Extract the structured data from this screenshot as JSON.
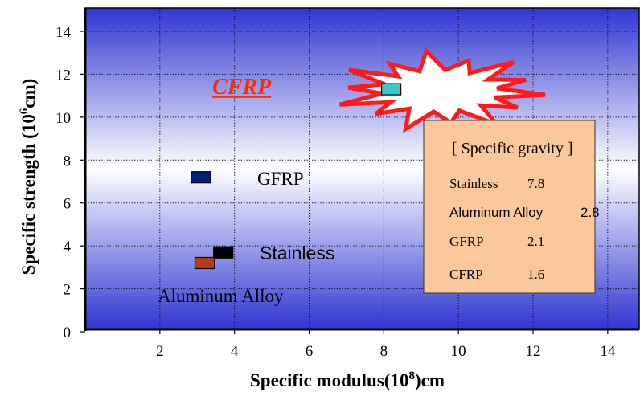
{
  "chart_data": {
    "type": "scatter",
    "title": "",
    "xlabel": {
      "main": "Specific modulus(10",
      "sup": "8",
      "tail": ")cm"
    },
    "ylabel": {
      "main": "Specific strength (10",
      "sup": "6",
      "tail": "cm)"
    },
    "xlim": [
      0,
      15
    ],
    "ylim": [
      0,
      15
    ],
    "xticks": [
      "2",
      "4",
      "6",
      "8",
      "10",
      "12",
      "14"
    ],
    "yticks": [
      "0",
      "2",
      "4",
      "6",
      "8",
      "10",
      "12",
      "14"
    ],
    "grid": true,
    "points": [
      {
        "label": "CFRP",
        "x": 8.2,
        "y": 11.3,
        "color": "#3fc7c7"
      },
      {
        "label": "GFRP",
        "x": 3.1,
        "y": 7.2,
        "color": "#001d80"
      },
      {
        "label": "Stainless",
        "x": 3.7,
        "y": 3.7,
        "color": "#000000"
      },
      {
        "label": "Aluminum Alloy",
        "x": 3.2,
        "y": 3.2,
        "color": "#b83b16"
      }
    ],
    "legend": {
      "title": "[ Specific gravity ]",
      "position": "right",
      "rows": [
        {
          "name": "Stainless",
          "value": "7.8"
        },
        {
          "name": "Aluminum Alloy",
          "value": "2.8"
        },
        {
          "name": "GFRP",
          "value": "2.1"
        },
        {
          "name": "CFRP",
          "value": "1.6"
        }
      ]
    },
    "colors": {
      "plot_gradient": [
        "#3a3fd6",
        "#ffffff",
        "#3a3fd6"
      ],
      "highlight_burst": "#ff2020",
      "legend_box": "#fcc89a"
    }
  }
}
